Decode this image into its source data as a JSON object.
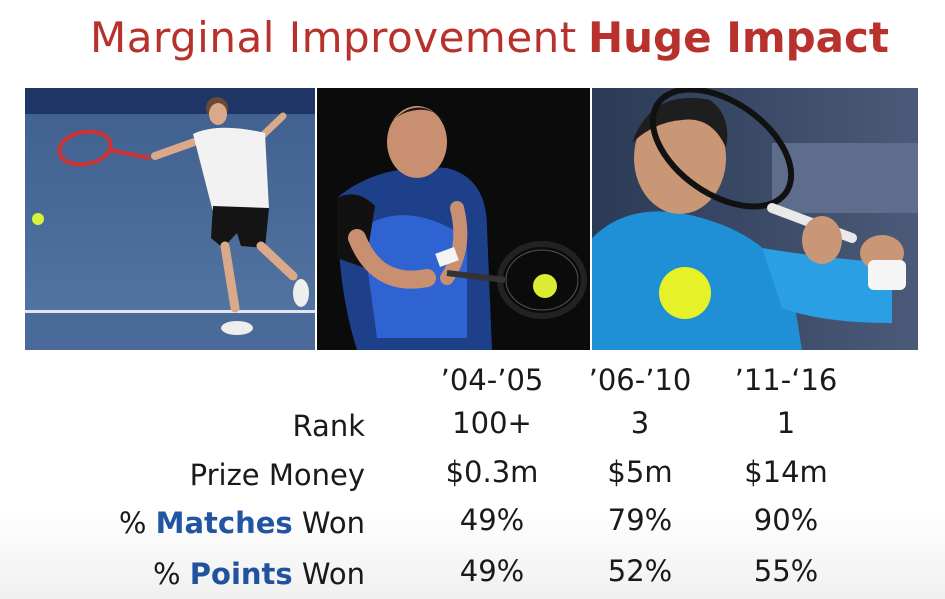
{
  "headline": {
    "left": "Marginal Improvement",
    "right": "Huge Impact"
  },
  "colors": {
    "headline": "#b8312c",
    "highlight": "#2156a5",
    "text": "#1a1a1a"
  },
  "photos": [
    {
      "name": "tennis-player-photo-early"
    },
    {
      "name": "tennis-player-photo-mid"
    },
    {
      "name": "tennis-player-photo-late"
    }
  ],
  "table": {
    "periods": [
      "’04-’05",
      "’06-’10",
      "’11-‘16"
    ],
    "rows": [
      {
        "label": "Rank",
        "values": [
          "100+",
          "3",
          "1"
        ]
      },
      {
        "label": "Prize Money",
        "values": [
          "$0.3m",
          "$5m",
          "$14m"
        ]
      },
      {
        "label_prefix": "% ",
        "label_highlight": "Matches",
        "label_suffix": " Won",
        "values": [
          "49%",
          "79%",
          "90%"
        ]
      },
      {
        "label_prefix": "% ",
        "label_highlight": "Points",
        "label_suffix": " Won",
        "values": [
          "49%",
          "52%",
          "55%"
        ]
      }
    ]
  }
}
